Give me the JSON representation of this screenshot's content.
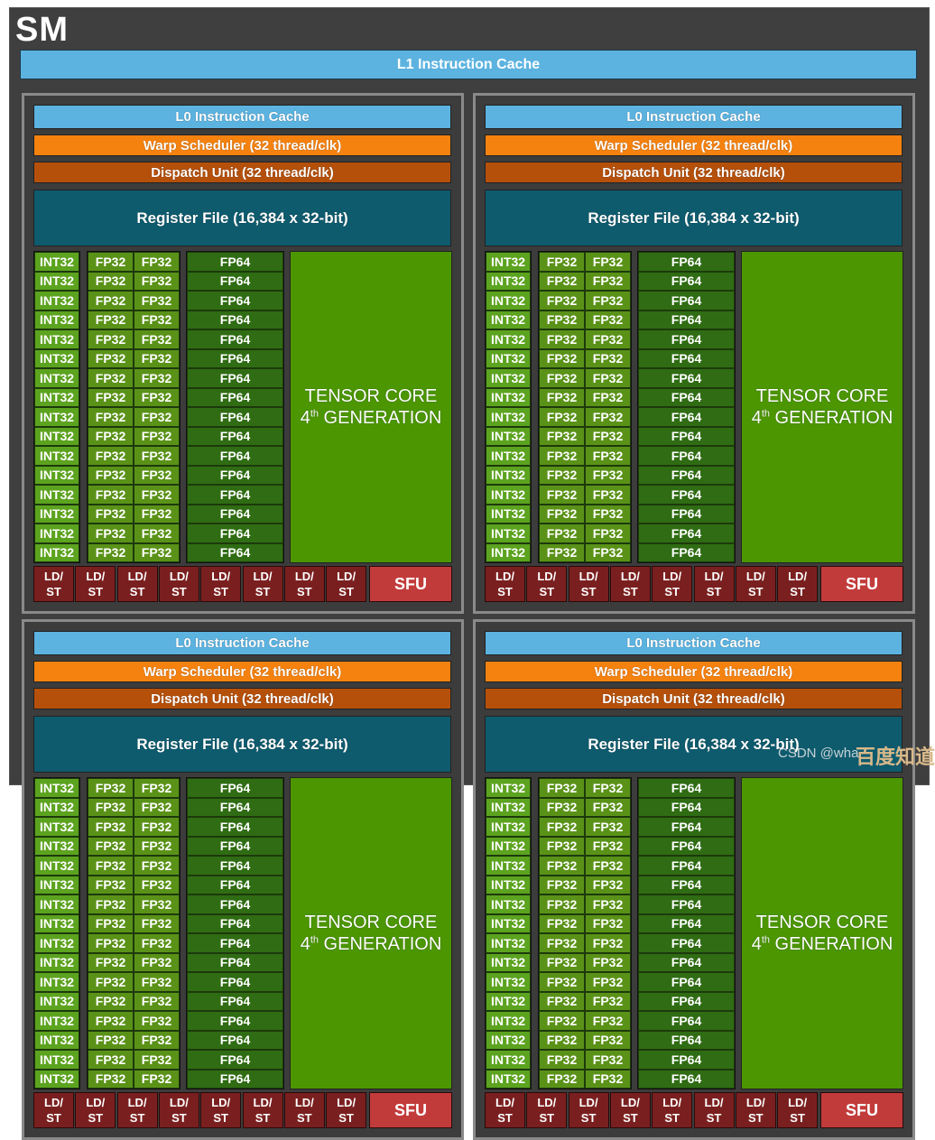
{
  "title": "SM",
  "l1_cache": "L1 Instruction Cache",
  "partition": {
    "l0_cache": "L0 Instruction Cache",
    "warp_scheduler": "Warp Scheduler (32 thread/clk)",
    "dispatch_unit": "Dispatch Unit (32 thread/clk)",
    "register_file": "Register File (16,384 x 32-bit)",
    "int32": "INT32",
    "fp32": "FP32",
    "fp64": "FP64",
    "unit_rows": 16,
    "tensor_core": {
      "line1": "TENSOR CORE",
      "num": "4",
      "sup": "th",
      "rest": " GENERATION"
    },
    "ldst": {
      "top": "LD/",
      "bottom": "ST"
    },
    "ldst_count": 8,
    "sfu": "SFU"
  },
  "partitions_visible": 4,
  "watermark": {
    "csdn": "CSDN @wha",
    "baidu": "百度知道"
  },
  "colors": {
    "l0_cache": "#5cb3e0",
    "warp_scheduler": "#f5820f",
    "dispatch_unit": "#b5500b",
    "register_file": "#0e5b6e",
    "int32": "#5ca31f",
    "fp32": "#5a9218",
    "fp64": "#2f6c13",
    "tensor_core": "#4b9601",
    "ldst": "#7a1f1f",
    "sfu": "#c23b3b"
  }
}
